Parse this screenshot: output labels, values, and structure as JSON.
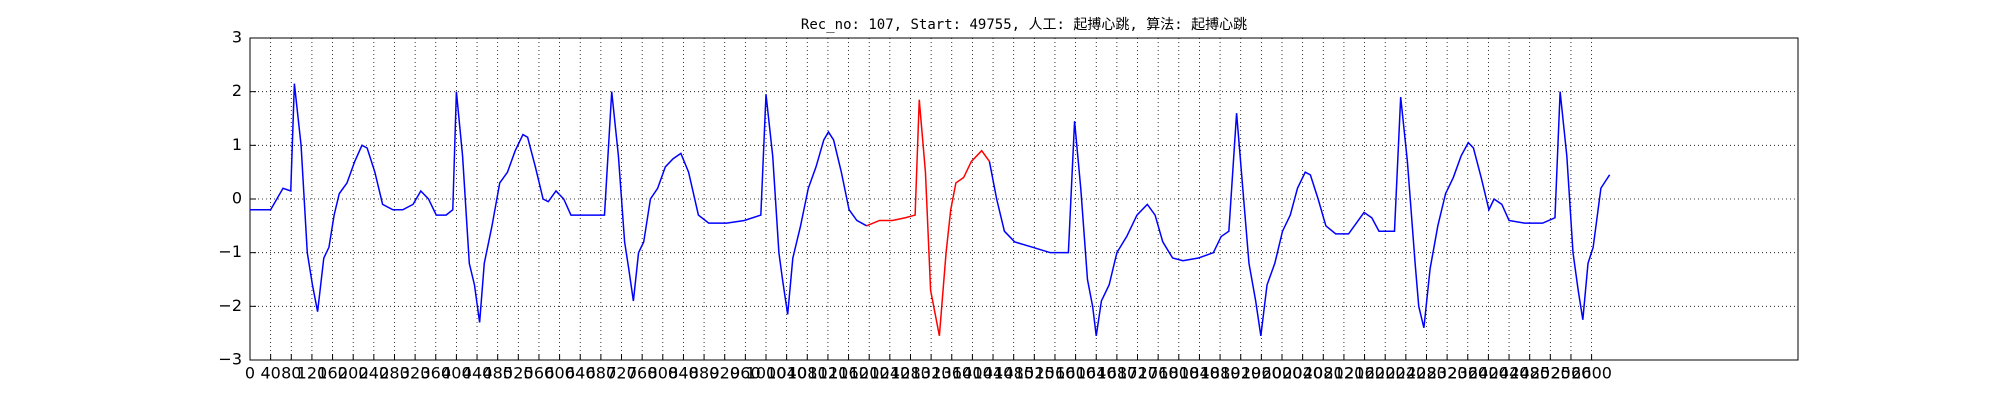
{
  "chart_data": {
    "type": "line",
    "title": "Rec_no: 107, Start: 49755, 人工: 起搏心跳, 算法: 起搏心跳",
    "xlim": [
      0,
      3000
    ],
    "xticks": [
      0,
      40,
      80,
      120,
      160,
      200,
      240,
      280,
      320,
      360,
      400,
      440,
      480,
      520,
      560,
      600,
      640,
      680,
      720,
      760,
      800,
      840,
      880,
      920,
      960,
      1000,
      1040,
      1080,
      1120,
      1160,
      1200,
      1240,
      1280,
      1320,
      1360,
      1400,
      1440,
      1480,
      1520,
      1560,
      1600,
      1640,
      1680,
      1720,
      1760,
      1800,
      1840,
      1880,
      1920,
      1960,
      2000,
      2040,
      2080,
      2120,
      2160,
      2200,
      2240,
      2280,
      2320,
      2360,
      2400,
      2440,
      2480,
      2520,
      2560,
      2600
    ],
    "ylim": [
      -3,
      3
    ],
    "yticks": [
      {
        "value": -3,
        "label": "−3"
      },
      {
        "value": -2,
        "label": "−2"
      },
      {
        "value": -1,
        "label": "−1"
      },
      0,
      1,
      2,
      3
    ],
    "grid": true,
    "series": [
      {
        "color": "#0000ff",
        "x": [
          0,
          40,
          64,
          79,
          86,
          99,
          111,
          121,
          131,
          143,
          153,
          163,
          173,
          188,
          203,
          217,
          227,
          242,
          257,
          277,
          296,
          316,
          331,
          346,
          361,
          380,
          393,
          400,
          412,
          425,
          435,
          445,
          454,
          469,
          484,
          499,
          514,
          529,
          538,
          553,
          568,
          578,
          593,
          608,
          622,
          652,
          687,
          701,
          714,
          726,
          734,
          743,
          753,
          763,
          776,
          790,
          805,
          820,
          835,
          850,
          869,
          889,
          924,
          958,
          990,
          1000,
          1013,
          1025,
          1032,
          1042,
          1052,
          1067,
          1082,
          1097,
          1112,
          1121,
          1131,
          1146,
          1161,
          1176,
          1195
        ],
        "values": [
          -0.2,
          -0.2,
          0.2,
          0.15,
          2.15,
          1.0,
          -1.0,
          -1.6,
          -2.1,
          -1.1,
          -0.9,
          -0.3,
          0.1,
          0.3,
          0.7,
          1.0,
          0.95,
          0.5,
          -0.1,
          -0.2,
          -0.2,
          -0.1,
          0.15,
          0.0,
          -0.3,
          -0.3,
          -0.2,
          2.0,
          0.8,
          -1.2,
          -1.6,
          -2.3,
          -1.2,
          -0.5,
          0.3,
          0.5,
          0.9,
          1.2,
          1.15,
          0.6,
          0.0,
          -0.05,
          0.15,
          0.0,
          -0.3,
          -0.3,
          -0.3,
          2.0,
          0.8,
          -0.8,
          -1.3,
          -1.9,
          -1.0,
          -0.8,
          0.0,
          0.2,
          0.6,
          0.75,
          0.85,
          0.5,
          -0.3,
          -0.45,
          -0.45,
          -0.4,
          -0.3,
          1.95,
          0.8,
          -1.0,
          -1.5,
          -2.15,
          -1.1,
          -0.5,
          0.2,
          0.6,
          1.1,
          1.25,
          1.1,
          0.5,
          -0.2,
          -0.4,
          -0.5
        ]
      },
      {
        "color": "#ff0000",
        "x": [
          1195,
          1220,
          1245,
          1270,
          1289,
          1297,
          1309,
          1319,
          1329,
          1336,
          1349,
          1358,
          1368,
          1383,
          1398,
          1418,
          1433
        ],
        "values": [
          -0.5,
          -0.4,
          -0.4,
          -0.35,
          -0.3,
          1.85,
          0.5,
          -1.7,
          -2.2,
          -2.55,
          -1.0,
          -0.2,
          0.3,
          0.4,
          0.7,
          0.9,
          0.7
        ]
      },
      {
        "color": "#0000ff",
        "x": [
          1433,
          1447,
          1462,
          1482,
          1517,
          1551,
          1586,
          1598,
          1610,
          1623,
          1633,
          1640,
          1650,
          1665,
          1680,
          1699,
          1719,
          1739,
          1754,
          1769,
          1788,
          1808,
          1838,
          1867,
          1882,
          1897,
          1912,
          1924,
          1936,
          1949,
          1959,
          1971,
          1986,
          2001,
          2016,
          2030,
          2045,
          2055,
          2070,
          2085,
          2104,
          2129,
          2144,
          2159,
          2174,
          2188,
          2218,
          2230,
          2243,
          2258,
          2265,
          2275,
          2287,
          2302,
          2317,
          2332,
          2347,
          2361,
          2371,
          2386,
          2401,
          2411,
          2426,
          2440,
          2470,
          2505,
          2529,
          2539,
          2552,
          2564,
          2574,
          2583,
          2593,
          2603,
          2618,
          2628,
          2635
        ],
        "values": [
          0.7,
          0.0,
          -0.6,
          -0.8,
          -0.9,
          -1.0,
          -1.0,
          1.45,
          0.2,
          -1.5,
          -2.0,
          -2.55,
          -1.9,
          -1.6,
          -1.0,
          -0.7,
          -0.3,
          -0.1,
          -0.3,
          -0.8,
          -1.1,
          -1.15,
          -1.1,
          -1.0,
          -0.7,
          -0.6,
          1.6,
          0.2,
          -1.2,
          -1.9,
          -2.55,
          -1.6,
          -1.2,
          -0.6,
          -0.3,
          0.2,
          0.5,
          0.45,
          0.0,
          -0.5,
          -0.65,
          -0.65,
          -0.45,
          -0.25,
          -0.35,
          -0.6,
          -0.6,
          1.9,
          0.7,
          -1.2,
          -2.0,
          -2.4,
          -1.3,
          -0.5,
          0.1,
          0.4,
          0.8,
          1.05,
          0.95,
          0.4,
          -0.2,
          0.0,
          -0.1,
          -0.4,
          -0.45,
          -0.45,
          -0.35,
          2.0,
          0.8,
          -1.0,
          -1.7,
          -2.25,
          -1.2,
          -0.9,
          0.2,
          0.35,
          0.45
        ]
      }
    ]
  }
}
